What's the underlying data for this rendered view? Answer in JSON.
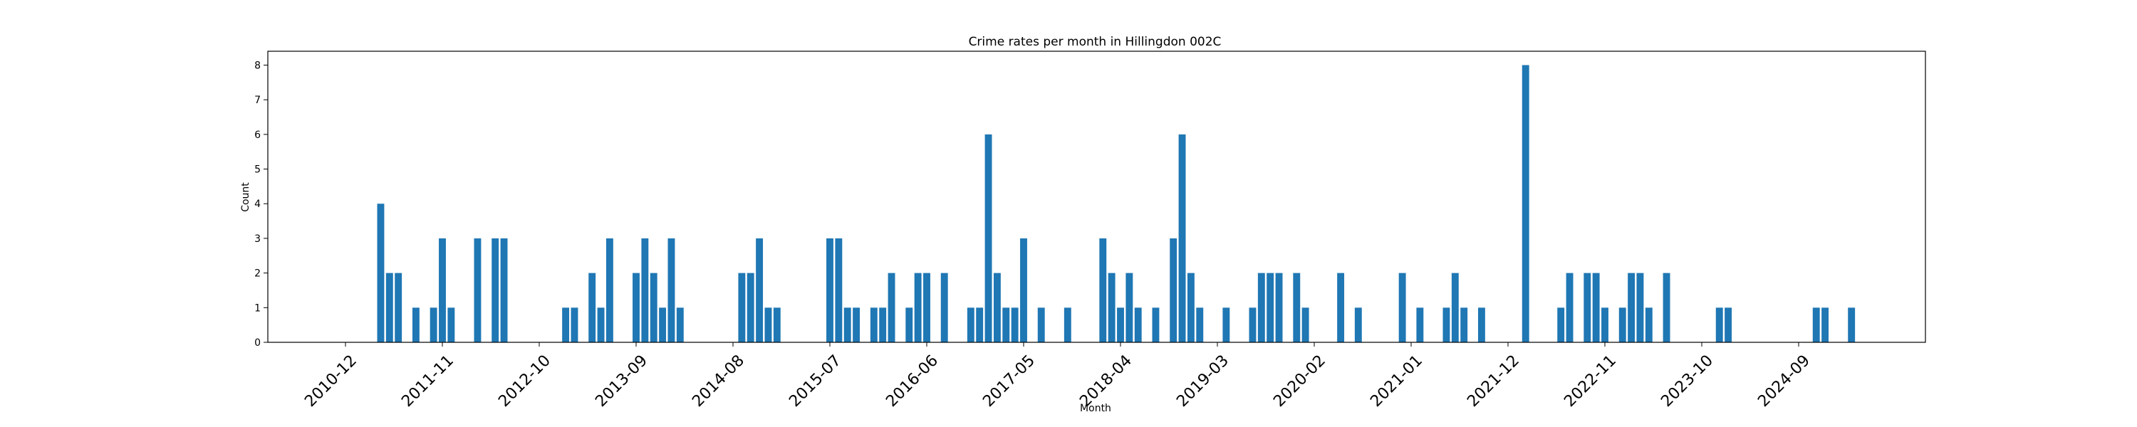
{
  "chart_data": {
    "type": "bar",
    "title": "Crime rates per month in Hillingdon 002C",
    "xlabel": "Month",
    "ylabel": "Count",
    "ylim": [
      0,
      8.4
    ],
    "yticks": [
      0,
      1,
      2,
      3,
      4,
      5,
      6,
      7,
      8
    ],
    "bar_color": "#1f77b4",
    "xtick_labels": [
      "2010-12",
      "2011-11",
      "2012-10",
      "2013-09",
      "2014-08",
      "2015-07",
      "2016-06",
      "2017-05",
      "2018-04",
      "2019-03",
      "2020-02",
      "2021-01",
      "2021-12",
      "2022-11",
      "2023-10",
      "2024-09"
    ],
    "categories": [
      "2011-04",
      "2011-05",
      "2011-06",
      "2011-08",
      "2011-10",
      "2011-11",
      "2011-12",
      "2012-03",
      "2012-05",
      "2012-06",
      "2013-01",
      "2013-02",
      "2013-04",
      "2013-05",
      "2013-06",
      "2013-09",
      "2013-10",
      "2013-11",
      "2013-12",
      "2014-01",
      "2014-02",
      "2014-09",
      "2014-10",
      "2014-11",
      "2014-12",
      "2015-01",
      "2015-07",
      "2015-08",
      "2015-09",
      "2015-10",
      "2015-12",
      "2016-01",
      "2016-02",
      "2016-04",
      "2016-05",
      "2016-06",
      "2016-08",
      "2016-11",
      "2016-12",
      "2017-01",
      "2017-02",
      "2017-03",
      "2017-04",
      "2017-05",
      "2017-07",
      "2017-10",
      "2018-02",
      "2018-03",
      "2018-04",
      "2018-05",
      "2018-06",
      "2018-08",
      "2018-10",
      "2018-11",
      "2018-12",
      "2019-01",
      "2019-04",
      "2019-07",
      "2019-08",
      "2019-09",
      "2019-10",
      "2019-12",
      "2020-01",
      "2020-05",
      "2020-07",
      "2020-12",
      "2021-02",
      "2021-05",
      "2021-06",
      "2021-07",
      "2021-09",
      "2022-02",
      "2022-06",
      "2022-07",
      "2022-09",
      "2022-10",
      "2022-11",
      "2023-01",
      "2023-02",
      "2023-03",
      "2023-04",
      "2023-06",
      "2023-12",
      "2024-01",
      "2024-11",
      "2024-12",
      "2025-03"
    ],
    "values": [
      4,
      2,
      2,
      1,
      1,
      3,
      1,
      3,
      3,
      3,
      1,
      1,
      2,
      1,
      3,
      2,
      3,
      2,
      1,
      3,
      1,
      2,
      2,
      3,
      1,
      1,
      3,
      3,
      1,
      1,
      1,
      1,
      2,
      1,
      2,
      2,
      2,
      1,
      1,
      6,
      2,
      1,
      1,
      3,
      1,
      1,
      3,
      2,
      1,
      2,
      1,
      1,
      3,
      6,
      2,
      1,
      1,
      1,
      2,
      2,
      2,
      2,
      1,
      2,
      1,
      2,
      1,
      1,
      2,
      1,
      1,
      8,
      1,
      2,
      2,
      2,
      1,
      1,
      2,
      2,
      1,
      2,
      1,
      1,
      1,
      1,
      1
    ]
  }
}
